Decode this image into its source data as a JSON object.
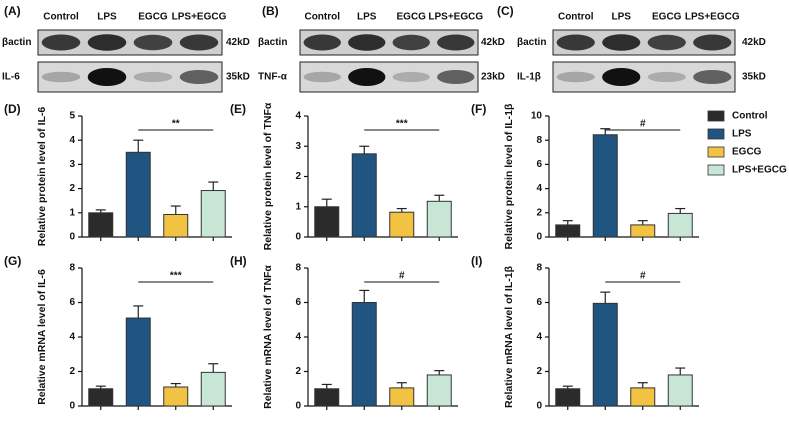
{
  "blots": [
    {
      "label": "(A)",
      "columns": [
        "Control",
        "LPS",
        "EGCG",
        "LPS+EGCG"
      ],
      "rows": [
        {
          "name": "βactin",
          "size": "42kD"
        },
        {
          "name": "IL-6",
          "size": "35kD"
        }
      ]
    },
    {
      "label": "(B)",
      "columns": [
        "Control",
        "LPS",
        "EGCG",
        "LPS+EGCG"
      ],
      "rows": [
        {
          "name": "βactin",
          "size": "42kD"
        },
        {
          "name": "TNF-α",
          "size": "23kD"
        }
      ]
    },
    {
      "label": "(C)",
      "columns": [
        "Control",
        "LPS",
        "EGCG",
        "LPS+EGCG"
      ],
      "rows": [
        {
          "name": "βactin",
          "size": "42kD"
        },
        {
          "name": "IL-1β",
          "size": "35kD"
        }
      ]
    }
  ],
  "legend": {
    "items": [
      {
        "name": "Control",
        "color": "#2b2b2b"
      },
      {
        "name": "LPS",
        "color": "#1f5580"
      },
      {
        "name": "EGCG",
        "color": "#f2c243"
      },
      {
        "name": "LPS+EGCG",
        "color": "#c8e6d6"
      }
    ]
  },
  "chart_data": [
    {
      "type": "bar",
      "panel": "(D)",
      "ylabel": "Relative protein level of IL-6",
      "values": [
        1.0,
        3.5,
        0.93,
        1.92
      ],
      "errors": [
        0.12,
        0.5,
        0.35,
        0.35
      ],
      "ylim": [
        0,
        5
      ],
      "yticks": [
        0,
        1,
        2,
        3,
        4,
        5
      ],
      "annotation": "**"
    },
    {
      "type": "bar",
      "panel": "(E)",
      "ylabel": "Relative protein level of TNFα",
      "values": [
        1.0,
        2.75,
        0.82,
        1.18
      ],
      "errors": [
        0.25,
        0.25,
        0.12,
        0.2
      ],
      "ylim": [
        0,
        4
      ],
      "yticks": [
        0,
        1,
        2,
        3,
        4
      ],
      "annotation": "***"
    },
    {
      "type": "bar",
      "panel": "(F)",
      "ylabel": "Relative protein level of IL-1β",
      "values": [
        1.0,
        8.45,
        1.0,
        1.95
      ],
      "errors": [
        0.35,
        0.5,
        0.35,
        0.4
      ],
      "ylim": [
        0,
        10
      ],
      "yticks": [
        0,
        2,
        4,
        6,
        8,
        10
      ],
      "annotation": "#"
    },
    {
      "type": "bar",
      "panel": "(G)",
      "ylabel": "Relative mRNA level of IL-6",
      "values": [
        1.0,
        5.1,
        1.1,
        1.95
      ],
      "errors": [
        0.15,
        0.7,
        0.2,
        0.5
      ],
      "ylim": [
        0,
        8
      ],
      "yticks": [
        0,
        2,
        4,
        6,
        8
      ],
      "annotation": "***"
    },
    {
      "type": "bar",
      "panel": "(H)",
      "ylabel": "Relative mRNA level of TNFα",
      "values": [
        1.0,
        6.0,
        1.05,
        1.8
      ],
      "errors": [
        0.25,
        0.7,
        0.3,
        0.25
      ],
      "ylim": [
        0,
        8
      ],
      "yticks": [
        0,
        2,
        4,
        6,
        8
      ],
      "annotation": "#"
    },
    {
      "type": "bar",
      "panel": "(I)",
      "ylabel": "Relative mRNA level of IL-1β",
      "values": [
        1.0,
        5.95,
        1.05,
        1.8
      ],
      "errors": [
        0.15,
        0.65,
        0.3,
        0.4
      ],
      "ylim": [
        0,
        8
      ],
      "yticks": [
        0,
        2,
        4,
        6,
        8
      ],
      "annotation": "#"
    }
  ]
}
